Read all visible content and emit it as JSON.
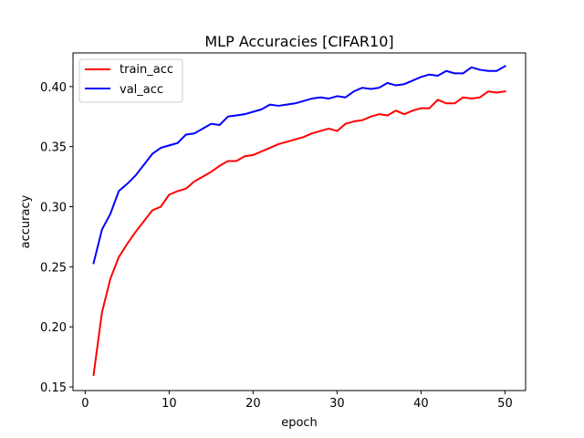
{
  "chart_data": {
    "type": "line",
    "title": "MLP Accuracies [CIFAR10]",
    "xlabel": "epoch",
    "ylabel": "accuracy",
    "xlim": [
      -1.45,
      52.45
    ],
    "ylim": [
      0.147,
      0.428
    ],
    "xticks": [
      0,
      10,
      20,
      30,
      40,
      50
    ],
    "yticks": [
      0.15,
      0.2,
      0.25,
      0.3,
      0.35,
      0.4
    ],
    "ytick_labels": [
      "0.15",
      "0.20",
      "0.25",
      "0.30",
      "0.35",
      "0.40"
    ],
    "grid": false,
    "legend_position": "upper-left",
    "x": [
      1,
      2,
      3,
      4,
      5,
      6,
      7,
      8,
      9,
      10,
      11,
      12,
      13,
      14,
      15,
      16,
      17,
      18,
      19,
      20,
      21,
      22,
      23,
      24,
      25,
      26,
      27,
      28,
      29,
      30,
      31,
      32,
      33,
      34,
      35,
      36,
      37,
      38,
      39,
      40,
      41,
      42,
      43,
      44,
      45,
      46,
      47,
      48,
      49,
      50
    ],
    "series": [
      {
        "name": "train_acc",
        "color": "#ff0000",
        "values": [
          0.16,
          0.212,
          0.24,
          0.258,
          0.269,
          0.279,
          0.288,
          0.297,
          0.3,
          0.31,
          0.313,
          0.315,
          0.321,
          0.325,
          0.329,
          0.334,
          0.338,
          0.338,
          0.342,
          0.343,
          0.346,
          0.349,
          0.352,
          0.354,
          0.356,
          0.358,
          0.361,
          0.363,
          0.365,
          0.363,
          0.369,
          0.371,
          0.372,
          0.375,
          0.377,
          0.376,
          0.38,
          0.377,
          0.38,
          0.382,
          0.382,
          0.389,
          0.386,
          0.386,
          0.391,
          0.39,
          0.391,
          0.396,
          0.395,
          0.396
        ]
      },
      {
        "name": "val_acc",
        "color": "#0000ff",
        "values": [
          0.253,
          0.281,
          0.294,
          0.313,
          0.319,
          0.326,
          0.335,
          0.344,
          0.349,
          0.351,
          0.353,
          0.36,
          0.361,
          0.365,
          0.369,
          0.368,
          0.375,
          0.376,
          0.377,
          0.379,
          0.381,
          0.385,
          0.384,
          0.385,
          0.386,
          0.388,
          0.39,
          0.391,
          0.39,
          0.392,
          0.391,
          0.396,
          0.399,
          0.398,
          0.399,
          0.403,
          0.401,
          0.402,
          0.405,
          0.408,
          0.41,
          0.409,
          0.413,
          0.411,
          0.411,
          0.416,
          0.414,
          0.413,
          0.413,
          0.417
        ]
      }
    ]
  }
}
